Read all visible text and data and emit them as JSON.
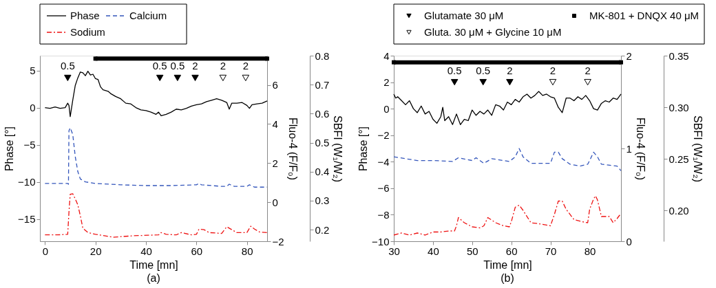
{
  "chart_data": [
    {
      "type": "line",
      "title": "(a)",
      "xlabel": "Time [mn]",
      "ylabel": "Phase [°]",
      "y2label": "Fluo-4 (F/F₀)",
      "y3label": "SBFI (W₁/W₂)",
      "xlim": [
        -2,
        88
      ],
      "xticks": [
        0,
        20,
        40,
        60,
        80
      ],
      "ylim": [
        -18,
        7
      ],
      "yticks": [
        -15,
        -10,
        -5,
        0,
        5
      ],
      "y2lim": [
        -2,
        7.5
      ],
      "y2ticks": [
        -2,
        0,
        2,
        4,
        6
      ],
      "y3lim": [
        0.16,
        0.8
      ],
      "y3ticks": [
        0.2,
        0.3,
        0.4,
        0.5,
        0.6,
        0.7,
        0.8
      ],
      "legend": "top",
      "grid": false,
      "series": [
        {
          "name": "Phase",
          "color": "#000000",
          "line_style": "solid",
          "axis": "y",
          "x": [
            0,
            2,
            4,
            6,
            8,
            9,
            9.5,
            10,
            11,
            12,
            13,
            14,
            15,
            16,
            17,
            18,
            19,
            20,
            21,
            22,
            23,
            25,
            26,
            28,
            30,
            32,
            34,
            36,
            38,
            40,
            42,
            44,
            45,
            46,
            48,
            50,
            52,
            54,
            56,
            58,
            60,
            62,
            64,
            66,
            68,
            70,
            72,
            73,
            74,
            76,
            78,
            80,
            81,
            82,
            84,
            86,
            88
          ],
          "values": [
            0,
            -0.1,
            0.1,
            -0.1,
            0,
            0.6,
            0.3,
            -1.2,
            1,
            3,
            4,
            4.8,
            4.7,
            4.3,
            4.9,
            4.4,
            4.5,
            3.9,
            3.8,
            2.8,
            2.4,
            2.2,
            1.9,
            1.5,
            1.2,
            0.6,
            0.5,
            0,
            -0.3,
            -0.4,
            -0.6,
            -0.9,
            -0.6,
            -1.1,
            -0.9,
            -0.6,
            -0.2,
            -0.3,
            -0.1,
            0.2,
            0.4,
            0.5,
            0.8,
            1,
            1.2,
            1,
            0.7,
            -0.2,
            0.6,
            0.6,
            0.7,
            0.3,
            -0.1,
            0.4,
            0.5,
            0.6,
            0.9
          ]
        },
        {
          "name": "Calcium",
          "color": "#3355bb",
          "line_style": "dashed",
          "axis": "y2",
          "x": [
            0,
            9,
            9.3,
            9.5,
            10,
            11,
            12,
            13,
            14,
            16,
            20,
            30,
            40,
            50,
            60,
            61,
            62,
            70,
            72,
            73,
            75,
            80,
            81,
            83,
            88
          ],
          "values": [
            0.96,
            0.96,
            0.92,
            3.66,
            3.81,
            3.47,
            2.33,
            1.57,
            1.19,
            1.04,
            0.96,
            0.89,
            0.85,
            0.85,
            0.89,
            0.96,
            0.89,
            0.81,
            0.81,
            0.92,
            0.81,
            0.81,
            0.89,
            0.77,
            0.77
          ]
        },
        {
          "name": "Sodium",
          "color": "#ee1111",
          "line_style": "dashdot",
          "axis": "y3",
          "x": [
            0,
            5,
            9,
            9.5,
            10,
            11,
            12,
            13,
            14,
            15,
            17,
            20,
            27,
            35,
            45,
            46,
            48,
            52,
            54,
            58,
            60,
            61,
            63,
            65,
            70,
            72,
            74,
            76,
            80,
            81.5,
            83,
            85,
            88
          ],
          "values": [
            0.182,
            0.182,
            0.184,
            0.261,
            0.322,
            0.324,
            0.306,
            0.286,
            0.248,
            0.205,
            0.19,
            0.184,
            0.174,
            0.179,
            0.182,
            0.19,
            0.184,
            0.182,
            0.19,
            0.182,
            0.184,
            0.202,
            0.2,
            0.19,
            0.187,
            0.21,
            0.2,
            0.19,
            0.19,
            0.212,
            0.202,
            0.192,
            0.19
          ]
        },
        {
          "type": "line",
          "color": "#000000",
          "marker": "square",
          "line_style": "solid",
          "axis": "y",
          "x": [
            20,
            88
          ],
          "values": [
            6.6,
            6.6
          ]
        },
        {
          "type": "scatter",
          "color": "#000000",
          "marker": "triangle",
          "axis": "y",
          "x": [
            9,
            45.5,
            52.5,
            59.5
          ],
          "values": [
            4,
            4,
            4,
            4
          ]
        },
        {
          "type": "scatter",
          "color": "#ffffff",
          "marker": "triangle",
          "axis": "y",
          "x": [
            70.5,
            79.5
          ],
          "values": [
            4,
            4
          ]
        }
      ],
      "annotations": [
        {
          "text": "0.5",
          "x": 9,
          "y": 4
        },
        {
          "text": "0.5",
          "x": 45.5,
          "y": 4
        },
        {
          "text": "0.5",
          "x": 52.5,
          "y": 4
        },
        {
          "text": "2",
          "x": 59.5,
          "y": 4
        },
        {
          "text": "2",
          "x": 70.5,
          "y": 4
        },
        {
          "text": "2",
          "x": 79.5,
          "y": 4
        }
      ]
    },
    {
      "type": "line",
      "title": "(b)",
      "xlabel": "Time [mn]",
      "ylabel": "Phase [°]",
      "y2label": "Fluo-4 (F/F₀)",
      "y3label": "SBFI (W₁/W₂)",
      "xlim": [
        30,
        88
      ],
      "xticks": [
        30,
        40,
        50,
        60,
        70,
        80
      ],
      "ylim": [
        -10,
        4
      ],
      "yticks": [
        -10,
        -8,
        -6,
        -4,
        -2,
        0,
        2,
        4
      ],
      "y2lim": [
        0,
        2
      ],
      "y2ticks": [
        0,
        1,
        2
      ],
      "y3lim": [
        0.17,
        0.35
      ],
      "y3ticks": [
        {
          "value": 0.2,
          "label": "0.20"
        },
        0.25,
        {
          "value": 0.3,
          "label": "0.30"
        },
        0.35
      ],
      "legend": "top",
      "grid": false,
      "series": [
        {
          "color": "#000000",
          "line_style": "solid",
          "axis": "y",
          "x": [
            30,
            30.5,
            31,
            32,
            33,
            34,
            35,
            36,
            37,
            38,
            39,
            40,
            41,
            42,
            42.5,
            43,
            44,
            45,
            46,
            47,
            48,
            49,
            50,
            51,
            52,
            53,
            54,
            55,
            56,
            57,
            58,
            59,
            60,
            61,
            62,
            63,
            64,
            65,
            66,
            67,
            68,
            69,
            70,
            71,
            72,
            73,
            74,
            75,
            76,
            77,
            78,
            79,
            80,
            81,
            82,
            83,
            84,
            85,
            86,
            87,
            88
          ],
          "values": [
            1.1,
            0.8,
            0.9,
            0.6,
            0.3,
            0.6,
            0,
            -0.3,
            0.2,
            -0.4,
            -0.2,
            -0.8,
            -1.1,
            -0.6,
            0.1,
            -0.9,
            -0.6,
            -1.2,
            -0.4,
            -1.2,
            -0.8,
            -0.9,
            -0.1,
            -0.5,
            -0.2,
            -0.4,
            -0.1,
            -0.5,
            0.3,
            0.2,
            -0.1,
            0.5,
            0.3,
            0.7,
            0.5,
            0.9,
            1.1,
            0.8,
            1,
            1.3,
            1,
            1.1,
            0.9,
            0.8,
            0.1,
            -0.3,
            0.8,
            0.8,
            0.6,
            0.9,
            0.7,
            1,
            0.6,
            0,
            -0.1,
            0.4,
            0.6,
            0.5,
            0.8,
            0.7,
            1.1
          ]
        },
        {
          "color": "#3355bb",
          "line_style": "dashed",
          "axis": "y2",
          "x": [
            30,
            33,
            36,
            40,
            45,
            46.5,
            50,
            51,
            53,
            55,
            59.5,
            61,
            62,
            63,
            65,
            70,
            71,
            72,
            73,
            75,
            77.5,
            79.5,
            80,
            81,
            82,
            83,
            87,
            88
          ],
          "values": [
            0.91,
            0.89,
            0.87,
            0.87,
            0.86,
            0.9,
            0.87,
            0.9,
            0.84,
            0.89,
            0.86,
            0.91,
            1.0,
            0.91,
            0.84,
            0.84,
            0.96,
            0.96,
            0.89,
            0.83,
            0.81,
            0.83,
            0.87,
            0.96,
            0.91,
            0.83,
            0.81,
            0.76
          ]
        },
        {
          "color": "#ee1111",
          "line_style": "dashdot",
          "axis": "y3",
          "x": [
            30,
            32,
            34,
            36,
            38,
            40,
            42,
            44,
            45.5,
            46,
            46.5,
            48,
            50,
            52,
            53,
            54,
            56,
            58,
            59.5,
            60,
            61,
            62,
            63,
            65,
            67,
            70,
            71,
            72,
            73,
            74,
            76,
            78,
            79.5,
            80,
            81,
            81.5,
            82,
            83,
            85,
            86,
            87,
            88
          ],
          "values": [
            0.176,
            0.178,
            0.176,
            0.178,
            0.176,
            0.179,
            0.179,
            0.18,
            0.18,
            0.185,
            0.193,
            0.188,
            0.184,
            0.183,
            0.185,
            0.193,
            0.188,
            0.185,
            0.184,
            0.189,
            0.203,
            0.205,
            0.2,
            0.188,
            0.187,
            0.185,
            0.196,
            0.209,
            0.209,
            0.201,
            0.191,
            0.189,
            0.188,
            0.201,
            0.211,
            0.214,
            0.21,
            0.194,
            0.194,
            0.188,
            0.192,
            0.197
          ]
        },
        {
          "name": "Glutamate 30 μM",
          "type": "scatter",
          "color": "#000000",
          "marker": "triangle",
          "axis": "y",
          "x": [
            45.5,
            52.8,
            59.6
          ],
          "values": [
            2,
            2,
            2
          ]
        },
        {
          "name": "MK-801 + DNQX 40 μM",
          "type": "line",
          "color": "#000000",
          "marker": "square",
          "line_style": "solid",
          "axis": "y",
          "x": [
            30,
            88
          ],
          "values": [
            3.5,
            3.5
          ]
        },
        {
          "name": "Gluta. 30 μM + Glycine 10 μM",
          "type": "scatter",
          "color": "#ffffff",
          "marker": "triangle",
          "axis": "y",
          "x": [
            70.6,
            79.5
          ],
          "values": [
            2,
            2
          ]
        }
      ],
      "annotations": [
        {
          "text": "0.5",
          "x": 45.5,
          "y": 2
        },
        {
          "text": "0.5",
          "x": 52.8,
          "y": 2
        },
        {
          "text": "2",
          "x": 59.6,
          "y": 2
        },
        {
          "text": "2",
          "x": 70.6,
          "y": 2
        },
        {
          "text": "2",
          "x": 79.5,
          "y": 2
        }
      ]
    }
  ]
}
